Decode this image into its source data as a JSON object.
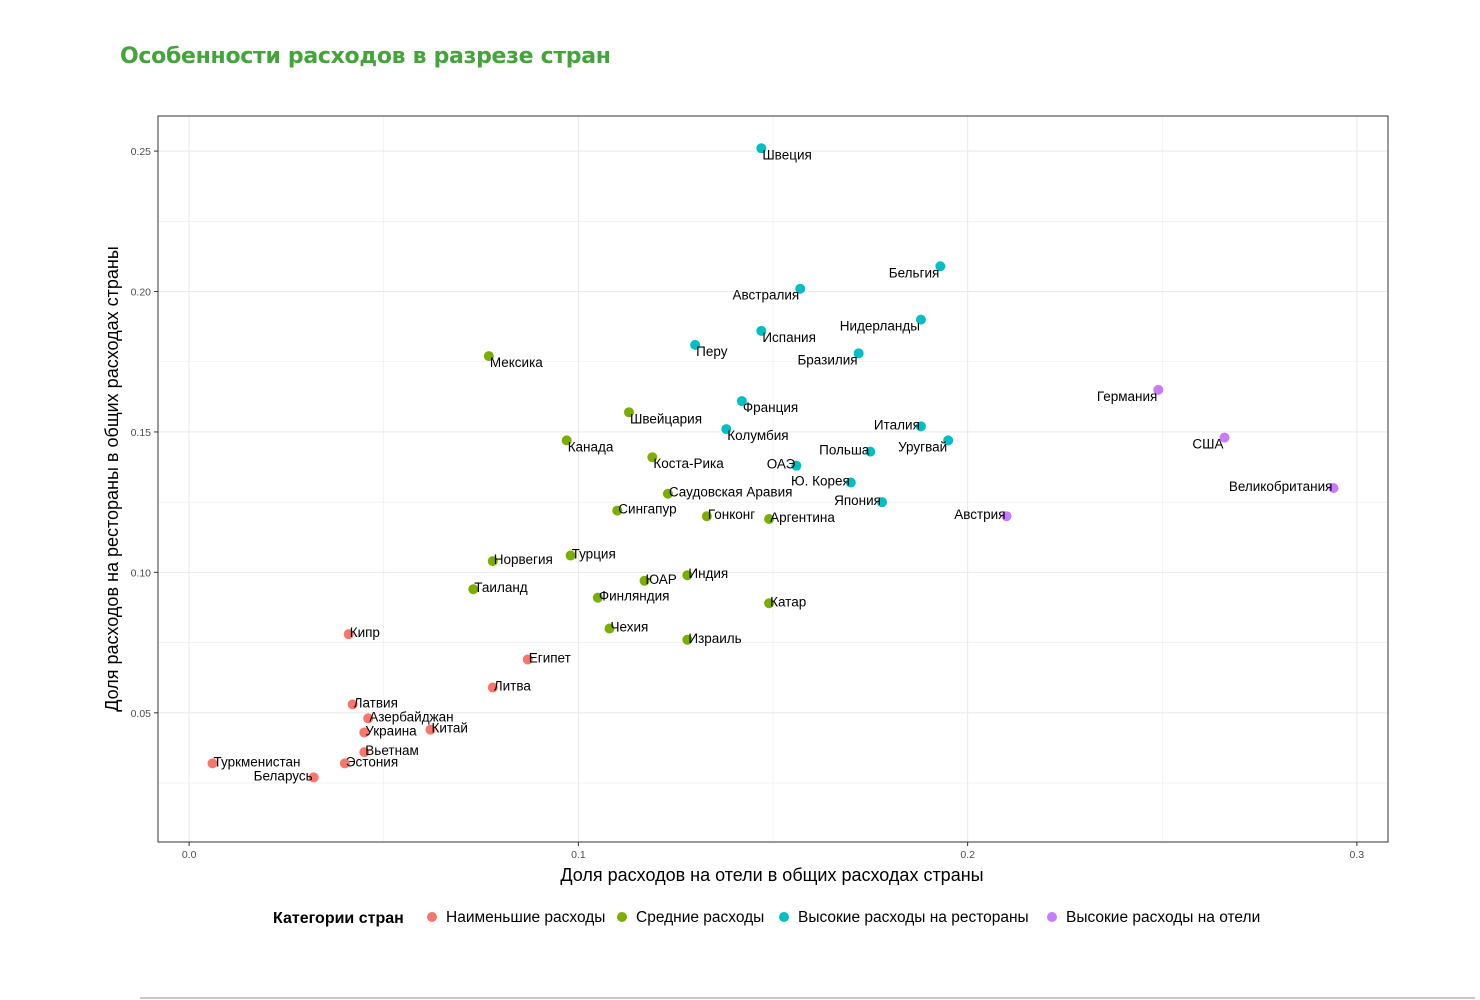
{
  "page": {
    "title": "Особенности расходов в разрезе стран"
  },
  "chart_data": {
    "type": "scatter",
    "xlabel": "Доля расходов на отели в общих расходах страны",
    "ylabel": "Доля расходов на рестораны в общих расходах страны",
    "xlim": [
      -0.008,
      0.308
    ],
    "ylim": [
      0.004,
      0.2625
    ],
    "x_ticks": [
      {
        "value": 0.0,
        "label": "0.0"
      },
      {
        "value": 0.1,
        "label": "0.1"
      },
      {
        "value": 0.2,
        "label": "0.2"
      },
      {
        "value": 0.3,
        "label": "0.3"
      }
    ],
    "y_ticks": [
      {
        "value": 0.05,
        "label": "0.05"
      },
      {
        "value": 0.1,
        "label": "0.10"
      },
      {
        "value": 0.15,
        "label": "0.15"
      },
      {
        "value": 0.2,
        "label": "0.20"
      },
      {
        "value": 0.25,
        "label": "0.25"
      }
    ],
    "grid": true,
    "legend_position": "bottom",
    "legend_title": "Категории стран",
    "colors": {
      "low": "#f8766d",
      "mid": "#7cae00",
      "rest": "#00bfc4",
      "hotel": "#c77cff",
      "title": "#44a33a"
    },
    "series": [
      {
        "key": "low",
        "name": "Наименьшие расходы",
        "points": [
          {
            "label": "Туркменистан",
            "x": 0.006,
            "y": 0.032
          },
          {
            "label": "Беларусь",
            "x": 0.032,
            "y": 0.027
          },
          {
            "label": "Эстония",
            "x": 0.04,
            "y": 0.032
          },
          {
            "label": "Кипр",
            "x": 0.041,
            "y": 0.078
          },
          {
            "label": "Латвия",
            "x": 0.042,
            "y": 0.053
          },
          {
            "label": "Вьетнам",
            "x": 0.045,
            "y": 0.036
          },
          {
            "label": "Украина",
            "x": 0.045,
            "y": 0.043
          },
          {
            "label": "Азербайджан",
            "x": 0.046,
            "y": 0.048
          },
          {
            "label": "Китай",
            "x": 0.062,
            "y": 0.044
          },
          {
            "label": "Литва",
            "x": 0.078,
            "y": 0.059
          },
          {
            "label": "Египет",
            "x": 0.087,
            "y": 0.069
          }
        ]
      },
      {
        "key": "mid",
        "name": "Средние расходы",
        "points": [
          {
            "label": "Таиланд",
            "x": 0.073,
            "y": 0.094
          },
          {
            "label": "Мексика",
            "x": 0.077,
            "y": 0.177
          },
          {
            "label": "Норвегия",
            "x": 0.078,
            "y": 0.104
          },
          {
            "label": "Канада",
            "x": 0.097,
            "y": 0.147
          },
          {
            "label": "Турция",
            "x": 0.098,
            "y": 0.106
          },
          {
            "label": "Финляндия",
            "x": 0.105,
            "y": 0.091
          },
          {
            "label": "Чехия",
            "x": 0.108,
            "y": 0.08
          },
          {
            "label": "Сингапур",
            "x": 0.11,
            "y": 0.122
          },
          {
            "label": "Швейцария",
            "x": 0.113,
            "y": 0.157
          },
          {
            "label": "ЮАР",
            "x": 0.117,
            "y": 0.097
          },
          {
            "label": "Коста-Рика",
            "x": 0.119,
            "y": 0.141
          },
          {
            "label": "Саудовская Аравия",
            "x": 0.123,
            "y": 0.128
          },
          {
            "label": "Израиль",
            "x": 0.128,
            "y": 0.076
          },
          {
            "label": "Индия",
            "x": 0.128,
            "y": 0.099
          },
          {
            "label": "Гонконг",
            "x": 0.133,
            "y": 0.12
          },
          {
            "label": "Аргентина",
            "x": 0.149,
            "y": 0.119
          },
          {
            "label": "Катар",
            "x": 0.149,
            "y": 0.089
          }
        ]
      },
      {
        "key": "rest",
        "name": "Высокие расходы на рестораны",
        "points": [
          {
            "label": "Перу",
            "x": 0.13,
            "y": 0.181
          },
          {
            "label": "Колумбия",
            "x": 0.138,
            "y": 0.151
          },
          {
            "label": "Франция",
            "x": 0.142,
            "y": 0.161
          },
          {
            "label": "Испания",
            "x": 0.147,
            "y": 0.186
          },
          {
            "label": "Швеция",
            "x": 0.147,
            "y": 0.251
          },
          {
            "label": "ОАЭ",
            "x": 0.156,
            "y": 0.138
          },
          {
            "label": "Австралия",
            "x": 0.157,
            "y": 0.201
          },
          {
            "label": "Ю. Корея",
            "x": 0.17,
            "y": 0.132
          },
          {
            "label": "Бразилия",
            "x": 0.172,
            "y": 0.178
          },
          {
            "label": "Польша",
            "x": 0.175,
            "y": 0.143
          },
          {
            "label": "Япония",
            "x": 0.178,
            "y": 0.125
          },
          {
            "label": "Италия",
            "x": 0.188,
            "y": 0.152
          },
          {
            "label": "Нидерланды",
            "x": 0.188,
            "y": 0.19
          },
          {
            "label": "Бельгия",
            "x": 0.193,
            "y": 0.209
          },
          {
            "label": "Уругвай",
            "x": 0.195,
            "y": 0.147
          }
        ]
      },
      {
        "key": "hotel",
        "name": "Высокие расходы на отели",
        "points": [
          {
            "label": "Австрия",
            "x": 0.21,
            "y": 0.12
          },
          {
            "label": "Германия",
            "x": 0.249,
            "y": 0.165
          },
          {
            "label": "США",
            "x": 0.266,
            "y": 0.148
          },
          {
            "label": "Великобритания",
            "x": 0.294,
            "y": 0.13
          }
        ]
      }
    ]
  }
}
